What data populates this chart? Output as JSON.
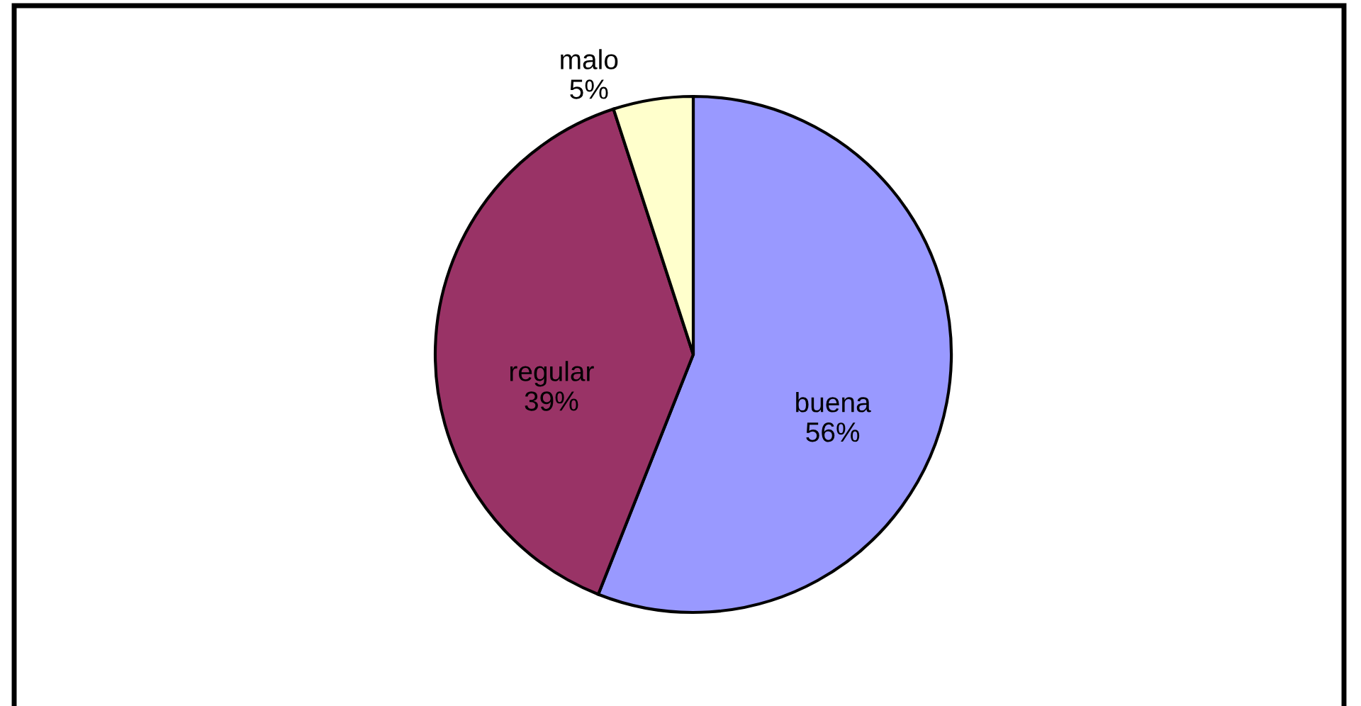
{
  "chart_data": {
    "type": "pie",
    "categories": [
      "buena",
      "regular",
      "malo"
    ],
    "values": [
      56,
      39,
      5
    ],
    "colors": [
      "#9999ff",
      "#993366",
      "#ffffcc"
    ],
    "value_labels": [
      "56%",
      "39%",
      "5%"
    ]
  }
}
